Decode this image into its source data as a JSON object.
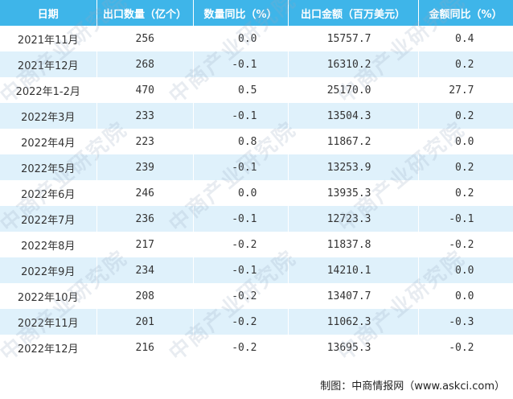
{
  "table": {
    "headers": [
      "日期",
      "出口数量（亿个）",
      "数量同比（%）",
      "出口金额（百万美元）",
      "金额同比（%）"
    ],
    "rows": [
      [
        "2021年11月",
        "256",
        "0.0",
        "15757.7",
        "0.4"
      ],
      [
        "2021年12月",
        "268",
        "-0.1",
        "16310.2",
        "0.2"
      ],
      [
        "2022年1-2月",
        "470",
        "0.5",
        "25170.0",
        "27.7"
      ],
      [
        "2022年3月",
        "233",
        "-0.1",
        "13504.3",
        "0.2"
      ],
      [
        "2022年4月",
        "223",
        "0.8",
        "11867.2",
        "0.0"
      ],
      [
        "2022年5月",
        "239",
        "-0.1",
        "13253.9",
        "0.2"
      ],
      [
        "2022年6月",
        "246",
        "0.0",
        "13935.3",
        "0.2"
      ],
      [
        "2022年7月",
        "236",
        "-0.1",
        "12723.3",
        "-0.1"
      ],
      [
        "2022年8月",
        "217",
        "-0.2",
        "11837.8",
        "-0.2"
      ],
      [
        "2022年9月",
        "234",
        "-0.1",
        "14210.1",
        "0.0"
      ],
      [
        "2022年10月",
        "208",
        "-0.2",
        "13407.7",
        "0.0"
      ],
      [
        "2022年11月",
        "201",
        "-0.2",
        "11062.3",
        "-0.3"
      ],
      [
        "2022年12月",
        "216",
        "-0.2",
        "13695.3",
        "-0.2"
      ]
    ]
  },
  "watermark_text": "中商产业研究院",
  "source": "制图：中商情报网（www.askci.com）",
  "colors": {
    "header_bg": "#3eb5e9",
    "header_text": "#ffffff",
    "row_alt_bg": "#dff1fb"
  }
}
